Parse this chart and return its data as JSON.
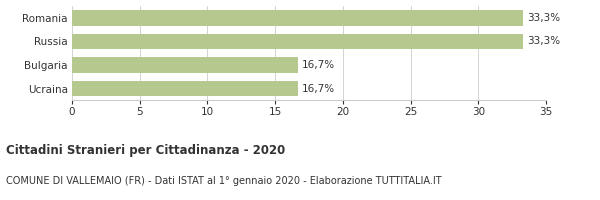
{
  "categories": [
    "Romania",
    "Russia",
    "Bulgaria",
    "Ucraina"
  ],
  "values": [
    33.3,
    33.3,
    16.7,
    16.7
  ],
  "labels": [
    "33,3%",
    "33,3%",
    "16,7%",
    "16,7%"
  ],
  "bar_color": "#b5c98e",
  "xlim": [
    0,
    35
  ],
  "xticks": [
    0,
    5,
    10,
    15,
    20,
    25,
    30,
    35
  ],
  "title": "Cittadini Stranieri per Cittadinanza - 2020",
  "subtitle": "COMUNE DI VALLEMAIO (FR) - Dati ISTAT al 1° gennaio 2020 - Elaborazione TUTTITALIA.IT",
  "title_fontsize": 8.5,
  "subtitle_fontsize": 7.0,
  "label_fontsize": 7.5,
  "ytick_fontsize": 7.5,
  "xtick_fontsize": 7.5,
  "bar_height": 0.65,
  "background_color": "#ffffff",
  "grid_color": "#cccccc",
  "text_color": "#333333"
}
